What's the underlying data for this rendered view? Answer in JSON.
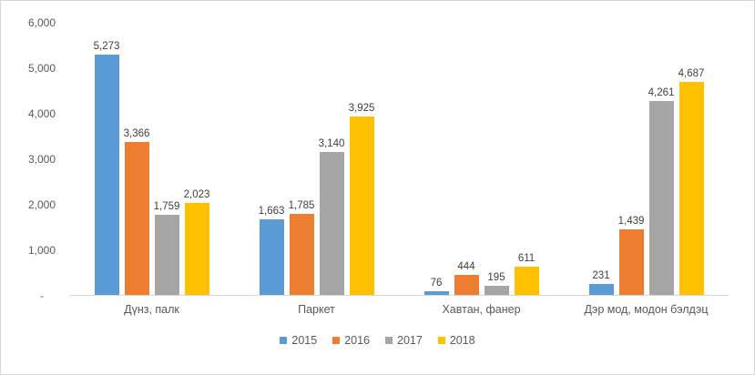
{
  "chart_data": {
    "type": "bar",
    "title": "",
    "xlabel": "",
    "ylabel": "",
    "categories": [
      "Дүнз, палк",
      "Паркет",
      "Хавтан, фанер",
      "Дэр мод, модон бэлдэц"
    ],
    "series": [
      {
        "name": "2015",
        "color": "#5B9BD5",
        "values": [
          5273,
          1663,
          76,
          231
        ]
      },
      {
        "name": "2016",
        "color": "#ED7D31",
        "values": [
          3366,
          1785,
          444,
          1439
        ]
      },
      {
        "name": "2017",
        "color": "#A5A5A5",
        "values": [
          1759,
          3140,
          195,
          4261
        ]
      },
      {
        "name": "2018",
        "color": "#FFC000",
        "values": [
          2023,
          3925,
          611,
          4687
        ]
      }
    ],
    "data_labels": [
      "5,273",
      "3,366",
      "1,759",
      "2,023",
      "1,663",
      "1,785",
      "3,140",
      "3,925",
      "76",
      "444",
      "195",
      "611",
      "231",
      "1,439",
      "4,261",
      "4,687"
    ],
    "ylim": [
      0,
      6000
    ],
    "ytick_step": 1000,
    "ytick_labels": [
      "6,000",
      "5,000",
      "4,000",
      "3,000",
      "2,000",
      "1,000",
      "-"
    ],
    "grid": false,
    "legend_position": "bottom"
  }
}
